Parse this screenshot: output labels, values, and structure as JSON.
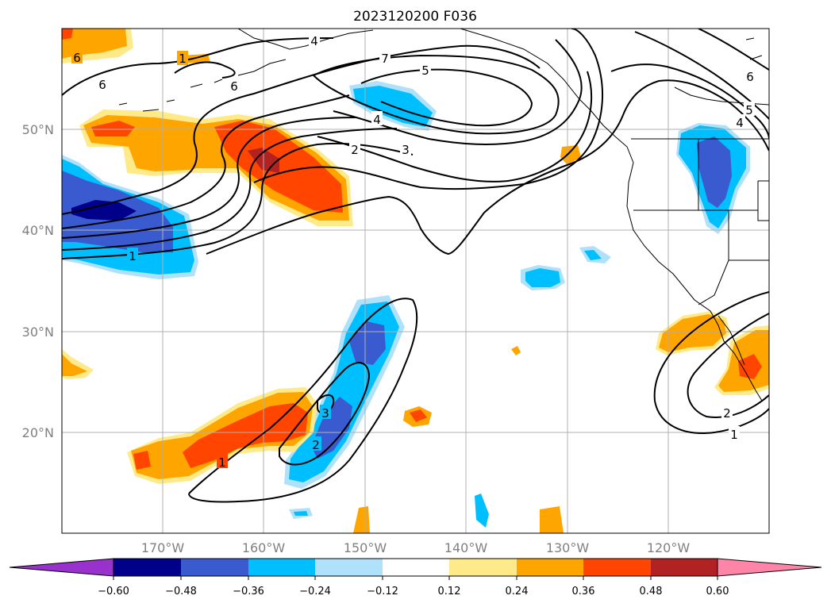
{
  "title": "2023120200 F036",
  "lat_labels": [
    "50°N",
    "40°N",
    "30°N",
    "20°N"
  ],
  "lon_labels": [
    "170°W",
    "160°W",
    "150°W",
    "140°W",
    "130°W",
    "120°W"
  ],
  "colorbar": {
    "ticks": [
      "−0.60",
      "−0.48",
      "−0.36",
      "−0.24",
      "−0.12",
      "0.12",
      "0.24",
      "0.36",
      "0.48",
      "0.60"
    ],
    "colors": [
      "#9932cc",
      "#00008b",
      "#3a5bd0",
      "#00bfff",
      "#afe1fa",
      "#ffffff",
      "#ffea8a",
      "#ffa500",
      "#ff4500",
      "#b22222",
      "#ff85a8"
    ]
  },
  "contour_labels": [
    "6",
    "1",
    "6",
    "4",
    "6",
    "7",
    "5",
    "4",
    "2",
    "3",
    "1",
    "3",
    "2",
    "1",
    "2",
    "1",
    "6",
    "5",
    "4"
  ]
}
